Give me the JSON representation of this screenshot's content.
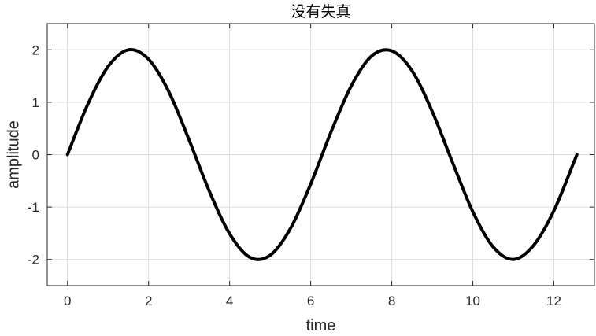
{
  "chart_data": {
    "type": "line",
    "title": "没有失真",
    "xlabel": "time",
    "ylabel": "amplitude",
    "xlim": [
      -0.5,
      13.0
    ],
    "ylim": [
      -2.5,
      2.5
    ],
    "xticks": [
      0,
      2,
      4,
      6,
      8,
      10,
      12
    ],
    "xtick_labels": [
      "0",
      "2",
      "4",
      "6",
      "8",
      "10",
      "12"
    ],
    "yticks": [
      -2,
      -1,
      0,
      1,
      2
    ],
    "ytick_labels": [
      "-2",
      "-1",
      "0",
      "1",
      "2"
    ],
    "grid": true,
    "series": [
      {
        "color": "#000000",
        "x": [
          0,
          0.5,
          1,
          1.5,
          2,
          2.5,
          3,
          3.5,
          4,
          4.5,
          5,
          5.5,
          6,
          6.5,
          7,
          7.5,
          8,
          8.5,
          9,
          9.5,
          10,
          10.5,
          11,
          11.5,
          12,
          12.5,
          12.566
        ],
        "values": [
          0,
          0.96,
          1.68,
          2.0,
          1.82,
          1.2,
          0.28,
          -0.7,
          -1.51,
          -1.96,
          -1.92,
          -1.41,
          -0.56,
          0.43,
          1.31,
          1.88,
          1.98,
          1.6,
          0.82,
          -0.15,
          -1.09,
          -1.76,
          -2.0,
          -1.73,
          -1.07,
          -0.13,
          0
        ]
      }
    ],
    "colors": {
      "grid": "#dcdcdc",
      "axes": "#262626",
      "line": "#000000"
    }
  }
}
